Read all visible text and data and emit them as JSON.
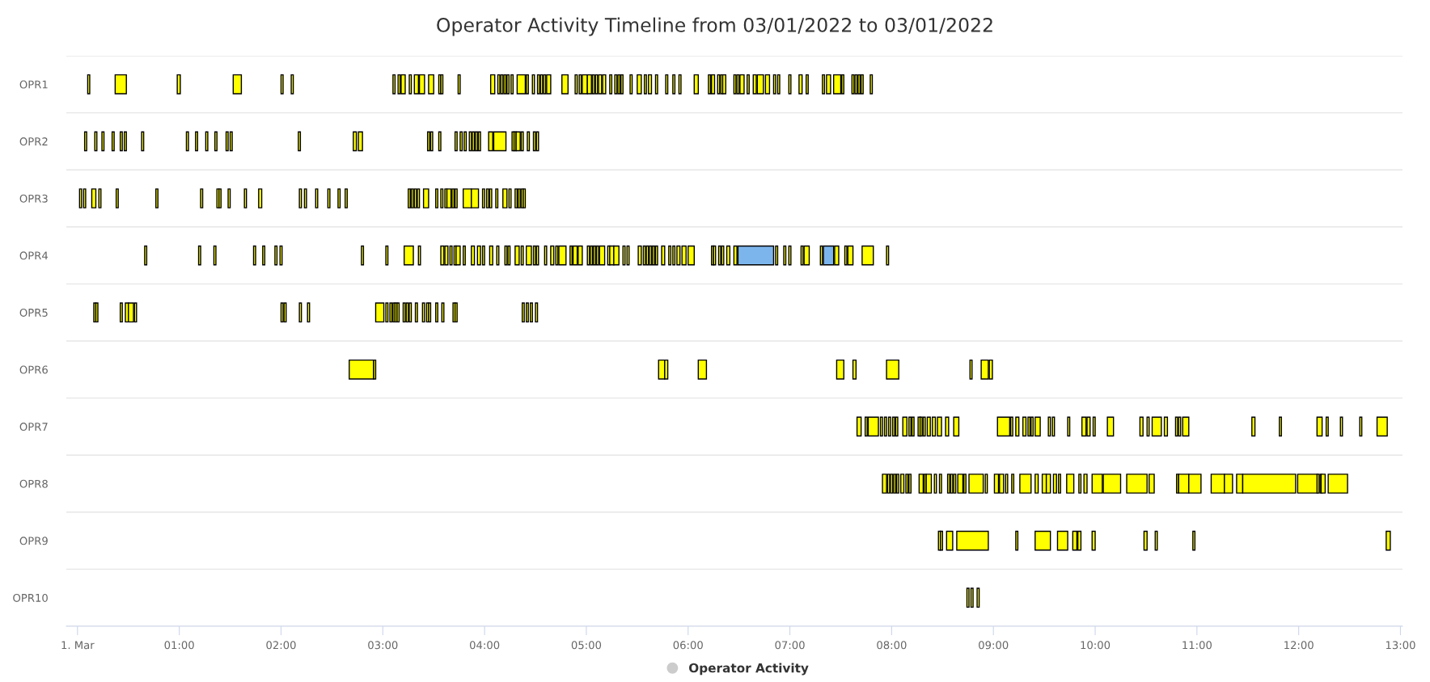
{
  "chart_data": {
    "type": "bar",
    "orientation": "horizontal",
    "title": "Operator Activity Timeline from 03/01/2022 to 03/01/2022",
    "categories": [
      "OPR1",
      "OPR2",
      "OPR3",
      "OPR4",
      "OPR5",
      "OPR6",
      "OPR7",
      "OPR8",
      "OPR9",
      "OPR10"
    ],
    "xlim": [
      -0.11,
      13.02
    ],
    "xticks": [
      {
        "value": 0,
        "label": "1. Mar"
      },
      {
        "value": 1,
        "label": "01:00"
      },
      {
        "value": 2,
        "label": "02:00"
      },
      {
        "value": 3,
        "label": "03:00"
      },
      {
        "value": 4,
        "label": "04:00"
      },
      {
        "value": 5,
        "label": "05:00"
      },
      {
        "value": 6,
        "label": "06:00"
      },
      {
        "value": 7,
        "label": "07:00"
      },
      {
        "value": 8,
        "label": "08:00"
      },
      {
        "value": 9,
        "label": "09:00"
      },
      {
        "value": 10,
        "label": "10:00"
      },
      {
        "value": 11,
        "label": "11:00"
      },
      {
        "value": 12,
        "label": "12:00"
      },
      {
        "value": 13,
        "label": "13:00"
      }
    ],
    "grid": "y",
    "legend": "bottom",
    "series": [
      {
        "name": "Operator Activity",
        "color": "#cccccc",
        "colors": [
          "#ffff00",
          "#ffff00",
          "#ffff00",
          "#ffff00",
          "#ffff00",
          "#ffff00",
          "#ffff00",
          "#ffff00",
          "#ffff00",
          "#ffff00"
        ],
        "base": [
          0.1,
          0.07,
          0.02,
          0.66,
          0.16,
          2.67,
          7.66,
          7.91,
          8.46,
          8.74
        ],
        "values": [
          0.02,
          0.02,
          0.02,
          0.02,
          0.02,
          0.24,
          0.04,
          0.04,
          0.02,
          0.02
        ]
      },
      {
        "color": "#ffff00",
        "base": [
          0.37,
          0.17,
          0.06,
          1.19,
          0.18,
          2.91,
          7.74,
          7.96,
          8.48,
          8.78
        ],
        "values": [
          0.11,
          0.02,
          0.02,
          0.02,
          0.02,
          0.02,
          0.02,
          0.02,
          0.02,
          0.02
        ]
      },
      {
        "color": "#ffff00",
        "base": [
          0.98,
          0.24,
          0.14,
          1.34,
          0.42,
          5.71,
          7.77,
          7.99,
          8.54,
          8.84
        ],
        "values": [
          0.03,
          0.02,
          0.04,
          0.02,
          0.02,
          0.06,
          0.1,
          0.02,
          0.06,
          0.02
        ]
      },
      {
        "color": "#ffff00",
        "base": [
          1.53,
          0.34,
          0.21,
          1.73,
          0.47,
          5.77,
          7.89,
          8.02,
          8.64,
          null
        ],
        "values": [
          0.08,
          0.02,
          0.02,
          0.02,
          0.03,
          0.03,
          0.02,
          0.02,
          0.31,
          null
        ]
      },
      {
        "color": "#ffff00",
        "base": [
          2.0,
          0.42,
          0.38,
          1.82,
          0.5,
          6.1,
          7.93,
          8.05,
          9.22,
          null
        ],
        "values": [
          0.02,
          0.02,
          0.02,
          0.02,
          0.05,
          0.08,
          0.02,
          0.02,
          0.02,
          null
        ]
      },
      {
        "color": "#ffff00",
        "base": [
          2.1,
          0.46,
          0.77,
          1.94,
          0.56,
          7.46,
          7.97,
          8.09,
          9.41,
          null
        ],
        "values": [
          0.02,
          0.02,
          0.02,
          0.02,
          0.02,
          0.07,
          0.02,
          0.03,
          0.15,
          null
        ]
      },
      {
        "color": "#ffff00",
        "base": [
          3.1,
          0.63,
          1.21,
          1.99,
          2.0,
          7.62,
          8.01,
          8.14,
          9.63,
          null
        ],
        "values": [
          0.02,
          0.02,
          0.02,
          0.02,
          0.02,
          0.03,
          0.02,
          0.02,
          0.1,
          null
        ]
      },
      {
        "color": "#ffff00",
        "base": [
          3.15,
          1.07,
          1.37,
          2.79,
          2.03,
          7.95,
          8.04,
          8.17,
          9.78,
          null
        ],
        "values": [
          0.02,
          0.02,
          0.02,
          0.02,
          0.02,
          0.12,
          0.02,
          0.02,
          0.04,
          null
        ]
      },
      {
        "color": "#ffff00",
        "base": [
          3.18,
          1.16,
          1.39,
          3.03,
          2.18,
          8.77,
          8.11,
          8.27,
          9.83,
          null
        ],
        "values": [
          0.04,
          0.02,
          0.02,
          0.02,
          0.02,
          0.02,
          0.04,
          0.04,
          0.03,
          null
        ]
      },
      {
        "color": "#ffff00",
        "base": [
          3.26,
          1.26,
          1.48,
          3.21,
          2.26,
          8.88,
          8.17,
          8.32,
          9.97,
          null
        ],
        "values": [
          0.02,
          0.02,
          0.02,
          0.09,
          0.02,
          0.07,
          0.02,
          0.02,
          0.03,
          null
        ]
      },
      {
        "color": "#ffff00",
        "base": [
          3.31,
          1.35,
          1.64,
          3.35,
          2.93,
          8.96,
          8.2,
          8.34,
          10.48,
          null
        ],
        "values": [
          0.04,
          0.02,
          0.02,
          0.02,
          0.08,
          0.03,
          0.02,
          0.05,
          0.03,
          null
        ]
      },
      {
        "color": "#ffff00",
        "base": [
          3.36,
          1.46,
          1.78,
          3.57,
          3.03,
          null,
          8.26,
          8.42,
          10.59,
          null
        ],
        "values": [
          0.05,
          0.02,
          0.03,
          0.03,
          0.02,
          null,
          0.02,
          0.02,
          0.02,
          null
        ]
      },
      {
        "color": "#ffff00",
        "base": [
          3.45,
          1.5,
          2.18,
          3.61,
          3.07,
          null,
          8.28,
          8.47,
          10.96,
          null
        ],
        "values": [
          0.05,
          0.02,
          0.02,
          0.03,
          0.02,
          null,
          0.02,
          0.02,
          0.02,
          null
        ]
      },
      {
        "color": "#ffff00",
        "base": [
          3.55,
          2.17,
          2.23,
          3.66,
          3.1,
          null,
          8.31,
          8.55,
          12.86,
          null
        ],
        "values": [
          0.02,
          0.02,
          0.02,
          0.02,
          0.02,
          null,
          0.02,
          0.02,
          0.04,
          null
        ]
      },
      {
        "color": "#ffff00",
        "base": [
          3.57,
          2.71,
          2.34,
          3.7,
          3.12,
          null,
          8.35,
          8.58,
          null,
          null
        ],
        "values": [
          0.02,
          0.03,
          0.02,
          0.02,
          0.02,
          null,
          0.03,
          0.02,
          null,
          null
        ]
      },
      {
        "color": "#ffff00",
        "base": [
          3.74,
          2.76,
          2.46,
          3.72,
          3.14,
          null,
          8.4,
          8.61,
          null,
          null
        ],
        "values": [
          0.02,
          0.04,
          0.02,
          0.04,
          0.02,
          null,
          0.03,
          0.02,
          null,
          null
        ]
      },
      {
        "color": "#ffff00",
        "base": [
          4.06,
          3.44,
          2.56,
          3.79,
          3.2,
          null,
          8.45,
          8.65,
          null,
          null
        ],
        "values": [
          0.04,
          0.02,
          0.02,
          0.02,
          0.02,
          null,
          0.04,
          0.05,
          null,
          null
        ]
      },
      {
        "color": "#ffff00",
        "base": [
          4.13,
          3.47,
          2.63,
          3.87,
          3.23,
          null,
          8.53,
          8.71,
          null,
          null
        ],
        "values": [
          0.02,
          0.02,
          0.02,
          0.03,
          0.02,
          null,
          0.03,
          0.02,
          null,
          null
        ]
      },
      {
        "color": "#ffff00",
        "base": [
          4.16,
          3.55,
          3.25,
          3.93,
          3.26,
          null,
          8.61,
          8.76,
          null,
          null
        ],
        "values": [
          0.02,
          0.02,
          0.02,
          0.03,
          0.02,
          null,
          0.05,
          0.14,
          null,
          null
        ]
      },
      {
        "color": "#ffff00",
        "base": [
          4.19,
          3.71,
          3.28,
          3.98,
          3.32,
          null,
          9.04,
          8.92,
          null,
          null
        ],
        "values": [
          0.02,
          0.02,
          0.02,
          0.02,
          0.02,
          null,
          0.12,
          0.02,
          null,
          null
        ]
      },
      {
        "color": "#ffff00",
        "base": [
          4.22,
          3.76,
          3.31,
          4.05,
          3.39,
          null,
          9.17,
          9.01,
          null,
          null
        ],
        "values": [
          0.02,
          0.02,
          0.02,
          0.03,
          0.02,
          null,
          0.02,
          0.04,
          null,
          null
        ]
      },
      {
        "color": "#ffff00",
        "base": [
          4.26,
          3.8,
          3.34,
          4.12,
          3.43,
          null,
          9.22,
          9.06,
          null,
          null
        ],
        "values": [
          0.02,
          0.02,
          0.02,
          0.02,
          0.02,
          null,
          0.03,
          0.04,
          null,
          null
        ]
      },
      {
        "color": "#ffff00",
        "base": [
          4.32,
          3.85,
          3.4,
          4.2,
          3.45,
          null,
          9.29,
          9.12,
          null,
          null
        ],
        "values": [
          0.08,
          0.02,
          0.05,
          0.02,
          0.02,
          null,
          0.03,
          0.02,
          null,
          null
        ]
      },
      {
        "color": "#ffff00",
        "base": [
          4.41,
          3.88,
          3.52,
          4.23,
          3.52,
          null,
          9.34,
          9.18,
          null,
          null
        ],
        "values": [
          0.02,
          0.02,
          0.02,
          0.02,
          0.02,
          null,
          0.02,
          0.02,
          null,
          null
        ]
      },
      {
        "color": "#ffff00",
        "base": [
          4.47,
          3.91,
          3.57,
          4.3,
          3.58,
          null,
          9.37,
          9.26,
          null,
          null
        ],
        "values": [
          0.02,
          0.02,
          0.02,
          0.04,
          0.02,
          null,
          0.02,
          0.11,
          null,
          null
        ]
      },
      {
        "color": "#ffff00",
        "base": [
          4.52,
          3.94,
          3.61,
          4.36,
          3.69,
          null,
          9.41,
          9.41,
          null,
          null
        ],
        "values": [
          0.02,
          0.02,
          0.02,
          0.02,
          0.02,
          null,
          0.05,
          0.03,
          null,
          null
        ]
      },
      {
        "color": "#ffff00",
        "base": [
          4.55,
          4.04,
          3.63,
          4.41,
          3.71,
          null,
          9.54,
          9.48,
          null,
          null
        ],
        "values": [
          0.02,
          0.04,
          0.04,
          0.05,
          0.02,
          null,
          0.02,
          0.04,
          null,
          null
        ]
      },
      {
        "color": "#ffff00",
        "base": [
          4.58,
          4.09,
          3.68,
          4.48,
          4.37,
          null,
          9.58,
          9.52,
          null,
          null
        ],
        "values": [
          0.02,
          0.12,
          0.02,
          0.02,
          0.02,
          null,
          0.02,
          0.04,
          null,
          null
        ]
      },
      {
        "color": "#ffff00",
        "base": [
          4.61,
          4.27,
          3.71,
          4.51,
          4.41,
          null,
          9.73,
          9.59,
          null,
          null
        ],
        "values": [
          0.04,
          0.02,
          0.02,
          0.02,
          0.02,
          null,
          0.02,
          0.03,
          null,
          null
        ]
      },
      {
        "color": "#ffff00",
        "base": [
          4.76,
          4.29,
          3.79,
          4.59,
          4.45,
          null,
          9.87,
          9.64,
          null,
          null
        ],
        "values": [
          0.06,
          0.02,
          0.08,
          0.02,
          0.02,
          null,
          0.04,
          0.02,
          null,
          null
        ]
      },
      {
        "color": "#ffff00",
        "base": [
          4.89,
          4.31,
          3.87,
          4.65,
          4.5,
          null,
          9.92,
          9.72,
          null,
          null
        ],
        "values": [
          0.02,
          0.04,
          0.07,
          0.03,
          0.02,
          null,
          0.03,
          0.07,
          null,
          null
        ]
      },
      {
        "color": "#ffff00",
        "base": [
          4.93,
          4.36,
          3.98,
          4.7,
          null,
          null,
          9.98,
          9.84,
          null,
          null
        ],
        "values": [
          0.02,
          0.02,
          0.02,
          0.02,
          null,
          null,
          0.02,
          0.02,
          null,
          null
        ]
      },
      {
        "color": "#ffff00",
        "base": [
          4.96,
          4.42,
          4.02,
          4.73,
          null,
          null,
          10.12,
          9.89,
          null,
          null
        ],
        "values": [
          0.05,
          0.02,
          0.02,
          0.07,
          null,
          null,
          0.06,
          0.03,
          null,
          null
        ]
      },
      {
        "color": "#ffff00",
        "base": [
          5.01,
          4.48,
          4.05,
          4.84,
          null,
          null,
          10.44,
          9.97,
          null,
          null
        ],
        "values": [
          0.04,
          0.02,
          0.02,
          0.02,
          null,
          null,
          0.03,
          0.1,
          null,
          null
        ]
      },
      {
        "color": "#ffff00",
        "base": [
          5.06,
          4.51,
          4.11,
          4.87,
          null,
          null,
          10.51,
          10.08,
          null,
          null
        ],
        "values": [
          0.02,
          0.02,
          0.02,
          0.04,
          null,
          null,
          0.02,
          0.17,
          null,
          null
        ]
      },
      {
        "color": "#ffff00",
        "base": [
          5.09,
          null,
          4.18,
          4.92,
          null,
          null,
          10.56,
          10.31,
          null,
          null
        ],
        "values": [
          0.02,
          null,
          0.04,
          0.04,
          null,
          null,
          0.09,
          0.2,
          null,
          null
        ]
      },
      {
        "color": "#ffff00",
        "base": [
          5.12,
          null,
          4.24,
          5.01,
          null,
          null,
          10.68,
          10.53,
          null,
          null
        ],
        "values": [
          0.03,
          null,
          0.02,
          0.02,
          null,
          null,
          0.03,
          0.05,
          null,
          null
        ]
      },
      {
        "color": "#ffff00",
        "base": [
          5.16,
          null,
          4.3,
          5.04,
          null,
          null,
          10.79,
          10.8,
          null,
          null
        ],
        "values": [
          0.03,
          null,
          0.02,
          0.02,
          null,
          null,
          0.02,
          0.02,
          null,
          null
        ]
      },
      {
        "color": "#ffff00",
        "base": [
          5.23,
          null,
          4.33,
          5.07,
          null,
          null,
          10.82,
          10.82,
          null,
          null
        ],
        "values": [
          0.02,
          null,
          0.02,
          0.02,
          null,
          null,
          0.02,
          0.1,
          null,
          null
        ]
      },
      {
        "color": "#ffff00",
        "base": [
          5.28,
          null,
          4.36,
          5.1,
          null,
          null,
          10.86,
          10.92,
          null,
          null
        ],
        "values": [
          0.02,
          null,
          0.02,
          0.02,
          null,
          null,
          0.06,
          0.12,
          null,
          null
        ]
      },
      {
        "color": "#ffff00",
        "base": [
          5.31,
          null,
          4.38,
          5.13,
          null,
          null,
          11.54,
          11.14,
          null,
          null
        ],
        "values": [
          0.02,
          null,
          0.02,
          0.05,
          null,
          null,
          0.03,
          0.13,
          null,
          null
        ]
      },
      {
        "color": "#ffff00",
        "base": [
          5.34,
          null,
          null,
          5.21,
          null,
          null,
          11.81,
          11.27,
          null,
          null
        ],
        "values": [
          0.02,
          null,
          null,
          0.02,
          null,
          null,
          0.02,
          0.08,
          null,
          null
        ]
      },
      {
        "color": "#ffff00",
        "base": [
          5.43,
          null,
          null,
          5.23,
          null,
          null,
          12.18,
          11.39,
          null,
          null
        ],
        "values": [
          0.02,
          null,
          null,
          0.04,
          null,
          null,
          0.05,
          0.06,
          null,
          null
        ]
      },
      {
        "color": "#ffff00",
        "base": [
          5.5,
          null,
          null,
          5.27,
          null,
          null,
          12.27,
          null,
          null,
          null
        ],
        "values": [
          0.04,
          null,
          null,
          0.05,
          null,
          null,
          0.02,
          null,
          null,
          null
        ]
      },
      {
        "color": "#ffff00",
        "base": [
          5.57,
          null,
          null,
          5.36,
          null,
          null,
          12.41,
          11.45,
          null,
          null
        ],
        "values": [
          0.02,
          null,
          null,
          0.02,
          null,
          null,
          0.02,
          0.52,
          null,
          null
        ]
      },
      {
        "color": "#ffff00",
        "base": [
          5.61,
          null,
          null,
          5.4,
          null,
          null,
          12.6,
          11.99,
          null,
          null
        ],
        "values": [
          0.03,
          null,
          null,
          0.02,
          null,
          null,
          0.02,
          0.2,
          null,
          null
        ]
      },
      {
        "color": "#ffff00",
        "base": [
          5.68,
          null,
          null,
          5.51,
          null,
          null,
          12.77,
          12.18,
          null,
          null
        ],
        "values": [
          0.02,
          null,
          null,
          0.03,
          null,
          null,
          0.1,
          0.02,
          null,
          null
        ]
      },
      {
        "color": "#ffff00",
        "base": [
          5.78,
          null,
          null,
          5.56,
          null,
          null,
          null,
          12.21,
          null,
          null
        ],
        "values": [
          0.02,
          null,
          null,
          0.02,
          null,
          null,
          null,
          0.02,
          null,
          null
        ]
      },
      {
        "color": "#ffff00",
        "base": [
          5.85,
          null,
          null,
          5.59,
          null,
          null,
          null,
          12.22,
          null,
          null
        ],
        "values": [
          0.02,
          null,
          null,
          0.02,
          null,
          null,
          null,
          0.04,
          null,
          null
        ]
      },
      {
        "color": "#ffff00",
        "base": [
          5.91,
          null,
          null,
          5.62,
          null,
          null,
          null,
          12.29,
          null,
          null
        ],
        "values": [
          0.02,
          null,
          null,
          0.02,
          null,
          null,
          null,
          0.19,
          null,
          null
        ]
      },
      {
        "color": "#ffff00",
        "base": [
          6.06,
          null,
          null,
          5.65,
          null,
          null,
          null,
          null,
          null,
          null
        ],
        "values": [
          0.04,
          null,
          null,
          0.02,
          null,
          null,
          null,
          null,
          null,
          null
        ]
      },
      {
        "color": "#ffff00",
        "base": [
          6.2,
          null,
          null,
          5.68,
          null,
          null,
          null,
          null,
          null,
          null
        ],
        "values": [
          0.02,
          null,
          null,
          0.02,
          null,
          null,
          null,
          null,
          null,
          null
        ]
      },
      {
        "color": "#ffff00",
        "base": [
          6.23,
          null,
          null,
          5.74,
          null,
          null,
          null,
          null,
          null,
          null
        ],
        "values": [
          0.03,
          null,
          null,
          0.03,
          null,
          null,
          null,
          null,
          null,
          null
        ]
      },
      {
        "color": "#ffff00",
        "base": [
          6.29,
          null,
          null,
          5.81,
          null,
          null,
          null,
          null,
          null,
          null
        ],
        "values": [
          0.02,
          null,
          null,
          0.02,
          null,
          null,
          null,
          null,
          null,
          null
        ]
      },
      {
        "color": "#ffff00",
        "base": [
          6.32,
          null,
          null,
          5.85,
          null,
          null,
          null,
          null,
          null,
          null
        ],
        "values": [
          0.02,
          null,
          null,
          0.02,
          null,
          null,
          null,
          null,
          null,
          null
        ]
      },
      {
        "color": "#ffff00",
        "base": [
          6.34,
          null,
          null,
          5.89,
          null,
          null,
          null,
          null,
          null,
          null
        ],
        "values": [
          0.03,
          null,
          null,
          0.03,
          null,
          null,
          null,
          null,
          null,
          null
        ]
      },
      {
        "color": "#ffff00",
        "base": [
          6.45,
          null,
          null,
          5.94,
          null,
          null,
          null,
          null,
          null,
          null
        ],
        "values": [
          0.02,
          null,
          null,
          0.04,
          null,
          null,
          null,
          null,
          null,
          null
        ]
      },
      {
        "color": "#ffff00",
        "base": [
          6.48,
          null,
          null,
          6.0,
          null,
          null,
          null,
          null,
          null,
          null
        ],
        "values": [
          0.02,
          null,
          null,
          0.06,
          null,
          null,
          null,
          null,
          null,
          null
        ]
      },
      {
        "color": "#ffff00",
        "base": [
          6.51,
          null,
          null,
          6.23,
          null,
          null,
          null,
          null,
          null,
          null
        ],
        "values": [
          0.04,
          null,
          null,
          0.02,
          null,
          null,
          null,
          null,
          null,
          null
        ]
      },
      {
        "color": "#ffff00",
        "base": [
          6.58,
          null,
          null,
          6.25,
          null,
          null,
          null,
          null,
          null,
          null
        ],
        "values": [
          0.02,
          null,
          null,
          0.02,
          null,
          null,
          null,
          null,
          null,
          null
        ]
      },
      {
        "color": "#ffff00",
        "base": [
          6.64,
          null,
          null,
          6.3,
          null,
          null,
          null,
          null,
          null,
          null
        ],
        "values": [
          0.03,
          null,
          null,
          0.02,
          null,
          null,
          null,
          null,
          null,
          null
        ]
      },
      {
        "color": "#ffff00",
        "base": [
          6.68,
          null,
          null,
          6.33,
          null,
          null,
          null,
          null,
          null,
          null
        ],
        "values": [
          0.06,
          null,
          null,
          0.02,
          null,
          null,
          null,
          null,
          null,
          null
        ]
      },
      {
        "color": "#ffff00",
        "base": [
          6.76,
          null,
          null,
          6.38,
          null,
          null,
          null,
          null,
          null,
          null
        ],
        "values": [
          0.04,
          null,
          null,
          0.03,
          null,
          null,
          null,
          null,
          null,
          null
        ]
      },
      {
        "color": "#ffff00",
        "base": [
          6.84,
          null,
          null,
          6.45,
          null,
          null,
          null,
          null,
          null,
          null
        ],
        "values": [
          0.02,
          null,
          null,
          0.03,
          null,
          null,
          null,
          null,
          null,
          null
        ]
      },
      {
        "color": "#ffff00",
        "colors": [
          null,
          null,
          null,
          "#7cb5ec",
          null,
          null,
          null,
          null,
          null,
          null
        ],
        "base": [
          6.88,
          null,
          null,
          6.49,
          null,
          null,
          null,
          null,
          null,
          null
        ],
        "values": [
          0.02,
          null,
          null,
          0.35,
          null,
          null,
          null,
          null,
          null,
          null
        ]
      },
      {
        "color": "#ffff00",
        "base": [
          6.99,
          null,
          null,
          6.86,
          null,
          null,
          null,
          null,
          null,
          null
        ],
        "values": [
          0.02,
          null,
          null,
          0.02,
          null,
          null,
          null,
          null,
          null,
          null
        ]
      },
      {
        "color": "#ffff00",
        "base": [
          7.09,
          null,
          null,
          6.94,
          null,
          null,
          null,
          null,
          null,
          null
        ],
        "values": [
          0.03,
          null,
          null,
          0.02,
          null,
          null,
          null,
          null,
          null,
          null
        ]
      },
      {
        "color": "#ffff00",
        "base": [
          7.16,
          null,
          null,
          6.99,
          null,
          null,
          null,
          null,
          null,
          null
        ],
        "values": [
          0.02,
          null,
          null,
          0.02,
          null,
          null,
          null,
          null,
          null,
          null
        ]
      },
      {
        "color": "#ffff00",
        "base": [
          7.32,
          null,
          null,
          7.11,
          null,
          null,
          null,
          null,
          null,
          null
        ],
        "values": [
          0.02,
          null,
          null,
          0.02,
          null,
          null,
          null,
          null,
          null,
          null
        ]
      },
      {
        "color": "#ffff00",
        "base": [
          7.36,
          null,
          null,
          7.14,
          null,
          null,
          null,
          null,
          null,
          null
        ],
        "values": [
          0.04,
          null,
          null,
          0.05,
          null,
          null,
          null,
          null,
          null,
          null
        ]
      },
      {
        "color": "#ffff00",
        "base": [
          7.43,
          null,
          null,
          7.3,
          null,
          null,
          null,
          null,
          null,
          null
        ],
        "values": [
          0.07,
          null,
          null,
          0.02,
          null,
          null,
          null,
          null,
          null,
          null
        ]
      },
      {
        "color": "#ffff00",
        "colors": [
          null,
          null,
          null,
          "#7cb5ec",
          null,
          null,
          null,
          null,
          null,
          null
        ],
        "base": [
          7.51,
          null,
          null,
          7.33,
          null,
          null,
          null,
          null,
          null,
          null
        ],
        "values": [
          0.02,
          null,
          null,
          0.1,
          null,
          null,
          null,
          null,
          null,
          null
        ]
      },
      {
        "color": "#ffff00",
        "base": [
          7.61,
          null,
          null,
          7.44,
          null,
          null,
          null,
          null,
          null,
          null
        ],
        "values": [
          0.02,
          null,
          null,
          0.04,
          null,
          null,
          null,
          null,
          null,
          null
        ]
      },
      {
        "color": "#ffff00",
        "base": [
          7.64,
          null,
          null,
          7.54,
          null,
          null,
          null,
          null,
          null,
          null
        ],
        "values": [
          0.02,
          null,
          null,
          0.02,
          null,
          null,
          null,
          null,
          null,
          null
        ]
      },
      {
        "color": "#ffff00",
        "base": [
          7.67,
          null,
          null,
          7.57,
          null,
          null,
          null,
          null,
          null,
          null
        ],
        "values": [
          0.02,
          null,
          null,
          0.05,
          null,
          null,
          null,
          null,
          null,
          null
        ]
      },
      {
        "color": "#ffff00",
        "base": [
          7.7,
          null,
          null,
          7.71,
          null,
          null,
          null,
          null,
          null,
          null
        ],
        "values": [
          0.02,
          null,
          null,
          0.11,
          null,
          null,
          null,
          null,
          null,
          null
        ]
      },
      {
        "color": "#ffff00",
        "base": [
          7.79,
          null,
          null,
          7.95,
          null,
          null,
          null,
          null,
          null,
          null
        ],
        "values": [
          0.02,
          null,
          null,
          0.02,
          null,
          null,
          null,
          null,
          null,
          null
        ]
      }
    ]
  }
}
